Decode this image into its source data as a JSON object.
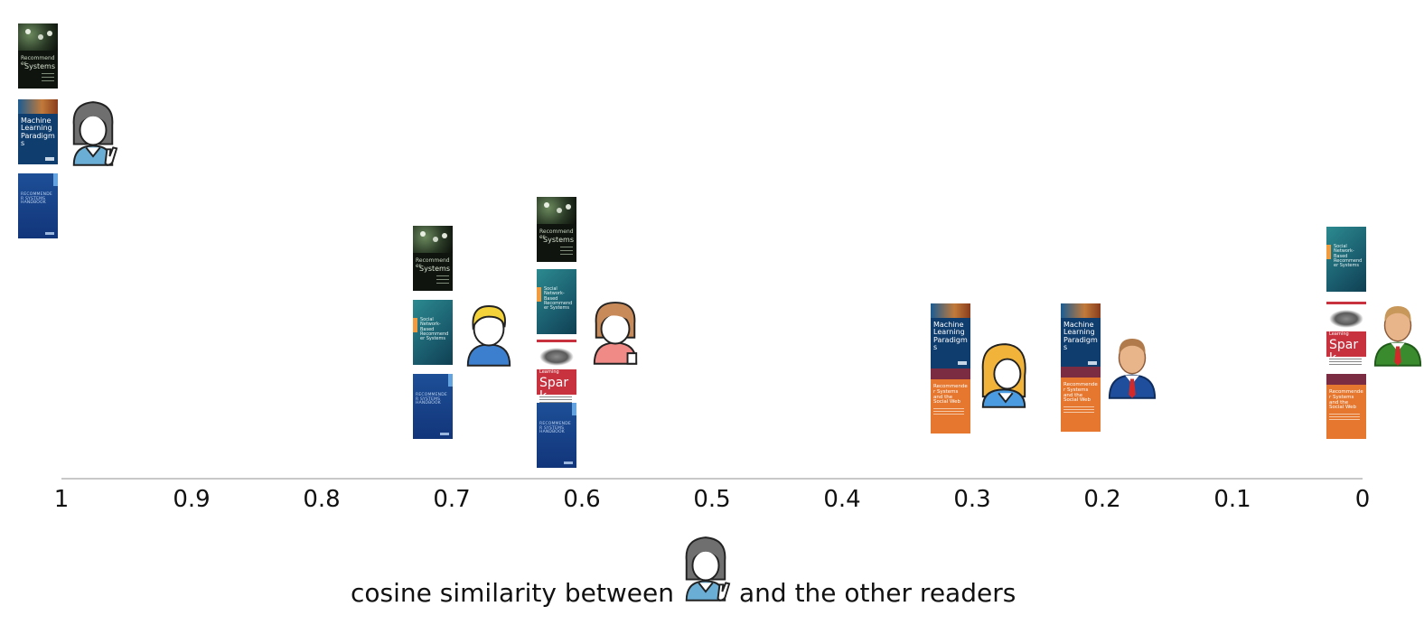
{
  "axis": {
    "ticks": [
      "1",
      "0.9",
      "0.8",
      "0.7",
      "0.6",
      "0.5",
      "0.4",
      "0.3",
      "0.2",
      "0.1",
      "0"
    ],
    "label_before": "cosine similarity between",
    "label_after": "and the other readers",
    "label_icon": "reader-girl-peace-icon"
  },
  "books": {
    "rsi": {
      "icon": "book-recommender-systems-introduction-icon",
      "t1": "Recommender",
      "t2": "Systems"
    },
    "mlp": {
      "icon": "book-machine-learning-paradigms-icon",
      "t1": "Machine Learning Paradigms"
    },
    "rsh": {
      "icon": "book-recommender-systems-handbook-icon",
      "t1": "RECOMMENDER SYSTEMS HANDBOOK"
    },
    "snb": {
      "icon": "book-social-network-based-recommender-systems-icon",
      "t1": "Social Network-Based Recommender Systems"
    },
    "spark": {
      "icon": "book-learning-spark-icon",
      "t1": "Learning",
      "t2": "Spark"
    },
    "rsw": {
      "icon": "book-recommender-systems-social-web-icon",
      "t1": "Recommender Systems and the Social Web"
    }
  },
  "chart_data": {
    "type": "scatter",
    "xlim": [
      1,
      0
    ],
    "xlabel": "cosine similarity between [reader] and the other readers",
    "points": [
      {
        "reader": "girl-peace-sign (target)",
        "similarity": 1.0,
        "books": [
          "rsi",
          "mlp",
          "rsh"
        ],
        "color": "#6aaed6"
      },
      {
        "reader": "blond-boy",
        "similarity": 0.7,
        "books": [
          "rsi",
          "snb",
          "rsh"
        ],
        "color": "#3c7fcf"
      },
      {
        "reader": "brown-hair-girl",
        "similarity": 0.6,
        "books": [
          "rsi",
          "snb",
          "spark",
          "rsh"
        ],
        "color": "#f08a86"
      },
      {
        "reader": "blond-woman",
        "similarity": 0.3,
        "books": [
          "mlp",
          "rsw"
        ],
        "color": "#3c7fcf"
      },
      {
        "reader": "businessman",
        "similarity": 0.2,
        "books": [
          "mlp",
          "rsw"
        ],
        "color": "#1f4f9c"
      },
      {
        "reader": "green-suit-man",
        "similarity": 0.0,
        "books": [
          "snb",
          "spark",
          "rsw"
        ],
        "color": "#3a8a2e"
      }
    ]
  }
}
